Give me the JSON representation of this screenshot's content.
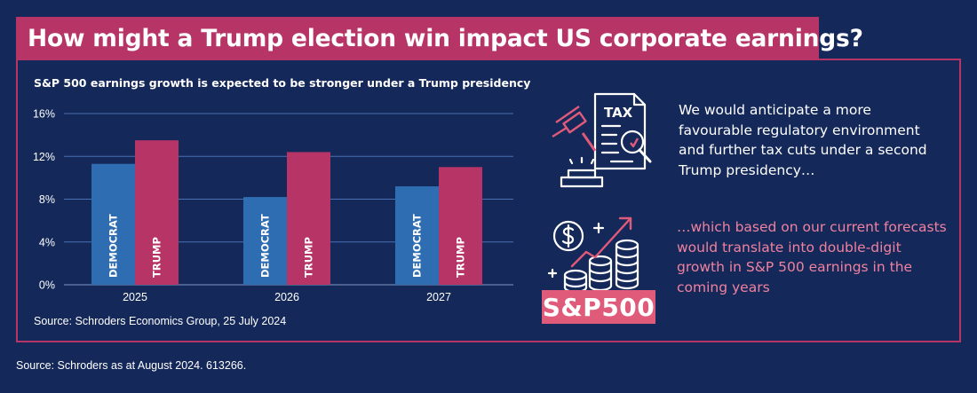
{
  "header": {
    "title": "How might a Trump election win impact US corporate earnings?"
  },
  "chart_data": {
    "type": "bar",
    "title": "S&P 500 earnings growth is expected to be stronger under a Trump presidency",
    "categories": [
      "2025",
      "2026",
      "2027"
    ],
    "series": [
      {
        "name": "DEMOCRAT",
        "color": "#2e6db1",
        "values": [
          11.3,
          8.2,
          9.2
        ]
      },
      {
        "name": "TRUMP",
        "color": "#b73466",
        "values": [
          13.5,
          12.4,
          11.0
        ]
      }
    ],
    "y_ticks": [
      "0%",
      "4%",
      "8%",
      "12%",
      "16%"
    ],
    "ylim": [
      0,
      16
    ],
    "grid": true,
    "legend": "labels-inside-bars",
    "source": "Source: Schroders Economics Group, 25 July 2024"
  },
  "panel": {
    "text_1": "We would anticipate a more favourable regulatory environment and further tax cuts under a second Trump presidency…",
    "text_2": "…which based on our current forecasts would translate into double-digit growth in S&P 500 earnings in the coming years",
    "icons": [
      "tax-document-gavel-icon",
      "dollar-growth-coins-icon"
    ],
    "tax_label": "TAX",
    "badge": "S&P500"
  },
  "footer": {
    "source": "Source: Schroders as at August 2024. 613266."
  },
  "colors": {
    "background": "#14285a",
    "accent": "#b73466",
    "democrat": "#2e6db1",
    "pink_text": "#f0829f"
  }
}
